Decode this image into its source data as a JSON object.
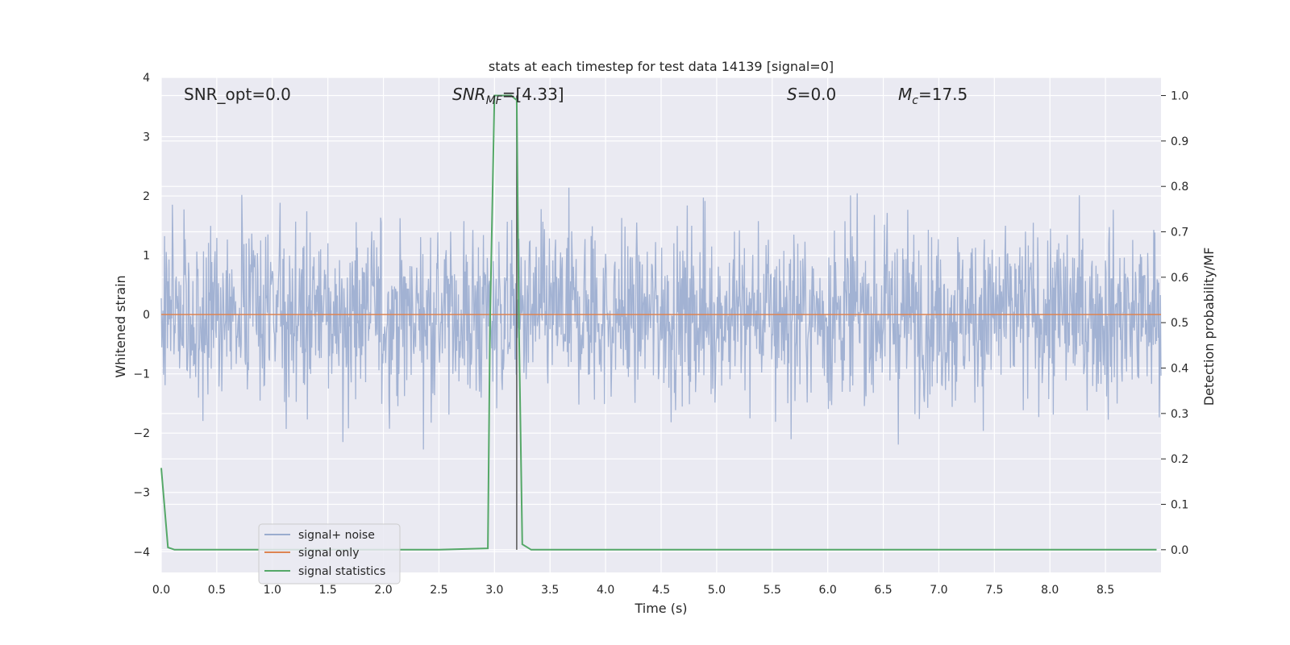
{
  "chart_data": {
    "type": "line",
    "title": "stats at each timestep for test data 14139 [signal=0]",
    "xlabel": "Time (s)",
    "ylabel": "Whitened strain",
    "y2label": "Detection probability/MF",
    "xlim": [
      0.0,
      9.0
    ],
    "ylim": [
      -4.35,
      4.0
    ],
    "y2lim": [
      -0.05,
      1.04
    ],
    "x_ticks": [
      0.0,
      0.5,
      1.0,
      1.5,
      2.0,
      2.5,
      3.0,
      3.5,
      4.0,
      4.5,
      5.0,
      5.5,
      6.0,
      6.5,
      7.0,
      7.5,
      8.0,
      8.5
    ],
    "x_tick_labels": [
      "0.0",
      "0.5",
      "1.0",
      "1.5",
      "2.0",
      "2.5",
      "3.0",
      "3.5",
      "4.0",
      "4.5",
      "5.0",
      "5.5",
      "6.0",
      "6.5",
      "7.0",
      "7.5",
      "8.0",
      "8.5"
    ],
    "y_ticks": [
      4,
      3,
      2,
      1,
      0,
      -1,
      -2,
      -3,
      -4
    ],
    "y_tick_labels": [
      "4",
      "3",
      "2",
      "1",
      "0",
      "−1",
      "−2",
      "−3",
      "−4"
    ],
    "y2_ticks": [
      1.0,
      0.9,
      0.8,
      0.7,
      0.6,
      0.5,
      0.4,
      0.3,
      0.2,
      0.1,
      0.0
    ],
    "y2_tick_labels": [
      "1.0",
      "0.9",
      "0.8",
      "0.7",
      "0.6",
      "0.5",
      "0.4",
      "0.3",
      "0.2",
      "0.1",
      "0.0"
    ],
    "grid": true,
    "legend_position": "lower-left",
    "annotations": {
      "snr_opt": "SNR_opt=0.0",
      "snr_mf_main": "SNR",
      "snr_mf_sub": "MF",
      "snr_mf_value": "=[4.33]",
      "s_main": "S",
      "s_value": "=0.0",
      "mc_main": "M",
      "mc_sub": "c",
      "mc_value": "=17.5"
    },
    "vline_x": 3.2,
    "series": [
      {
        "name": "signal+ noise",
        "color": "#9aaccf",
        "kind": "noise",
        "axis": "left",
        "amplitude_range": [
          -4.0,
          3.4
        ]
      },
      {
        "name": "signal only",
        "color": "#dd8452",
        "axis": "left",
        "x": [
          0.0,
          9.0
        ],
        "y": [
          0.0,
          0.0
        ]
      },
      {
        "name": "signal statistics",
        "color": "#55a868",
        "axis": "right",
        "x": [
          0.0,
          0.06,
          0.12,
          0.5,
          1.0,
          1.5,
          2.0,
          2.5,
          2.94,
          2.96,
          3.0,
          3.05,
          3.15,
          3.2,
          3.22,
          3.25,
          3.33,
          3.5,
          4.0,
          5.0,
          6.0,
          7.0,
          8.0,
          8.96
        ],
        "y": [
          0.18,
          0.005,
          0.0,
          0.0,
          0.0,
          0.0,
          0.0,
          0.0,
          0.003,
          0.5,
          1.0,
          1.0,
          1.0,
          0.99,
          0.5,
          0.012,
          0.0,
          0.0,
          0.0,
          0.0,
          0.0,
          0.0,
          0.0,
          0.0
        ]
      }
    ]
  }
}
